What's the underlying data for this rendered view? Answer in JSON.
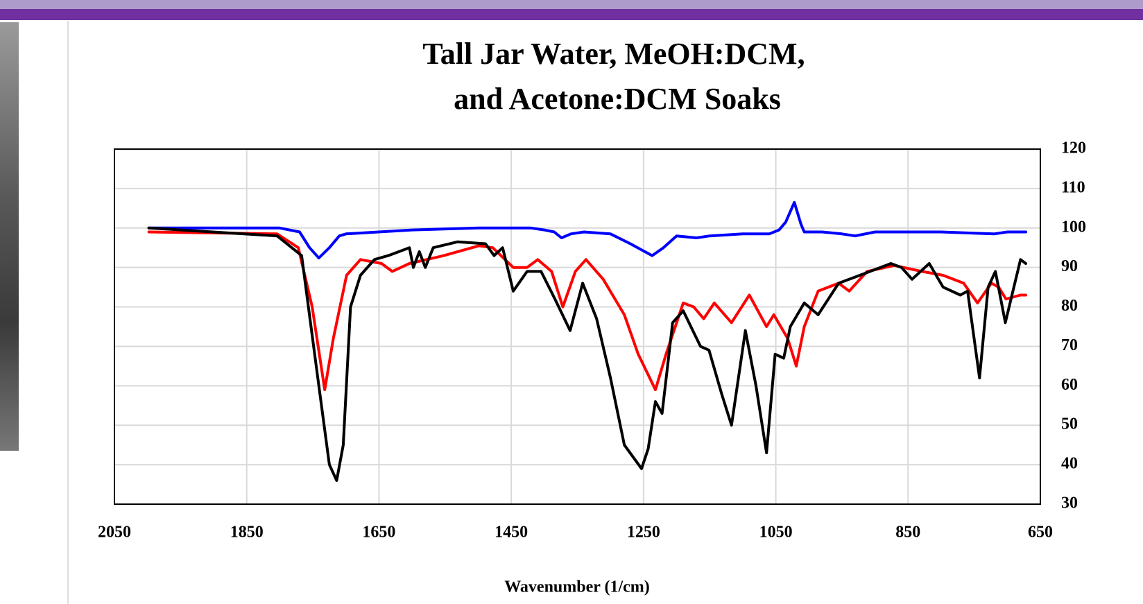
{
  "chart_data": {
    "type": "line",
    "title": [
      "Tall Jar Water, MeOH:DCM,",
      "and Acetone:DCM Soaks"
    ],
    "x_label": "Wavenumber (1/cm)",
    "xlim": [
      2050,
      650
    ],
    "xticks": [
      2050,
      1850,
      1650,
      1450,
      1250,
      1050,
      850,
      650
    ],
    "ylim": [
      30,
      120
    ],
    "yticks": [
      30,
      40,
      50,
      60,
      70,
      80,
      90,
      100,
      110,
      120
    ],
    "grid": true,
    "series": [
      {
        "color": "#0000ff",
        "x": [
          1998,
          1800,
          1770,
          1755,
          1741,
          1725,
          1710,
          1700,
          1600,
          1500,
          1420,
          1400,
          1385,
          1374,
          1360,
          1340,
          1300,
          1270,
          1237,
          1220,
          1200,
          1170,
          1150,
          1100,
          1060,
          1045,
          1035,
          1022,
          1012,
          1007,
          980,
          950,
          930,
          900,
          800,
          720,
          700,
          672
        ],
        "values": [
          100,
          100,
          99,
          95,
          92.4,
          95,
          98,
          98.5,
          99.5,
          100,
          100,
          99.5,
          99,
          97.5,
          98.5,
          99,
          98.5,
          96,
          93,
          95,
          98,
          97.5,
          98,
          98.5,
          98.5,
          99.5,
          101.5,
          106.5,
          101,
          99,
          99,
          98.5,
          98,
          99,
          99,
          98.5,
          99,
          99
        ]
      },
      {
        "color": "#ff0000",
        "x": [
          1998,
          1804,
          1772,
          1751,
          1732,
          1719,
          1699,
          1678,
          1646,
          1630,
          1604,
          1552,
          1499,
          1478,
          1447,
          1426,
          1410,
          1389,
          1372,
          1353,
          1337,
          1311,
          1279,
          1258,
          1232,
          1216,
          1190,
          1174,
          1159,
          1143,
          1117,
          1090,
          1064,
          1053,
          1032,
          1019,
          1007,
          986,
          955,
          939,
          912,
          871,
          829,
          797,
          766,
          745,
          724,
          713,
          702,
          680,
          672
        ],
        "values": [
          99,
          98.5,
          95,
          80,
          59,
          72,
          88,
          92,
          91,
          89,
          91,
          93,
          95.5,
          95,
          90,
          90,
          92,
          89,
          80,
          89,
          92,
          87,
          78,
          68,
          59,
          68,
          81,
          80,
          77,
          81,
          76,
          83,
          75,
          78,
          72,
          65,
          75,
          84,
          86,
          84,
          89,
          90.5,
          89,
          88,
          86,
          81,
          86,
          85,
          82,
          83,
          83
        ]
      },
      {
        "color": "#000000",
        "x": [
          1998,
          1804,
          1767,
          1741,
          1725,
          1714,
          1704,
          1693,
          1678,
          1657,
          1636,
          1604,
          1598,
          1589,
          1580,
          1568,
          1531,
          1489,
          1476,
          1463,
          1447,
          1426,
          1405,
          1384,
          1361,
          1342,
          1321,
          1300,
          1279,
          1253,
          1243,
          1232,
          1222,
          1206,
          1190,
          1164,
          1151,
          1132,
          1117,
          1096,
          1080,
          1064,
          1051,
          1038,
          1028,
          1007,
          986,
          955,
          923,
          876,
          860,
          844,
          818,
          797,
          771,
          760,
          742,
          729,
          718,
          703,
          680,
          672
        ],
        "values": [
          100,
          98,
          93,
          60,
          40,
          36,
          45,
          80,
          88,
          92,
          93,
          95,
          90,
          94,
          90,
          95,
          96.5,
          96,
          93,
          95,
          84,
          89,
          89,
          82,
          74,
          86,
          77,
          62,
          45,
          39,
          44,
          56,
          53,
          76,
          79,
          70,
          69,
          58,
          50,
          74,
          60,
          43,
          68,
          67,
          75,
          81,
          78,
          86,
          88,
          91,
          90,
          87,
          91,
          85,
          83,
          84,
          62,
          85,
          89,
          76,
          92,
          91
        ]
      }
    ]
  }
}
